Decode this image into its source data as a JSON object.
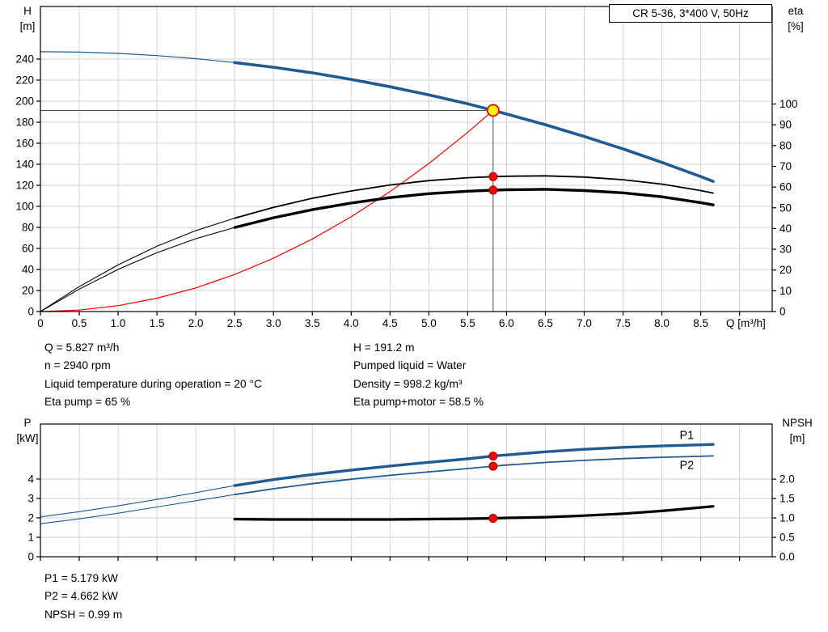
{
  "annotations": {
    "top_left": [
      "Q = 5.827 m³/h",
      "n = 2940 rpm",
      "Liquid temperature during operation = 20 °C",
      "Eta pump = 65 %"
    ],
    "top_right": [
      "H = 191.2 m",
      "Pumped liquid = Water",
      "Density = 998.2 kg/m³",
      "Eta pump+motor = 58.5 %"
    ],
    "bottom": [
      "P1 = 5.179 kW",
      "P2 = 4.662 kW",
      "NPSH = 0.99 m"
    ]
  },
  "colors": {
    "curve_blue": "#1f5a92",
    "curve_red": "#ff0000",
    "curve_black": "#000000",
    "duty_fill": "#ffff00",
    "duty_stroke": "#ff0000",
    "dot_fill": "#ff0000",
    "dot_stroke": "#990000",
    "crosshair": "#4d4d4d"
  },
  "chart_data": [
    {
      "id": "hq-chart",
      "type": "line",
      "title": "CR 5-36, 3*400 V, 50Hz",
      "x_axis": {
        "label": "Q [m³/h]",
        "lim": [
          0,
          9.42
        ],
        "ticks": [
          0,
          0.5,
          1,
          1.5,
          2,
          2.5,
          3,
          3.5,
          4,
          4.5,
          5,
          5.5,
          6,
          6.5,
          7,
          7.5,
          8,
          8.5,
          9
        ],
        "tick_labels": [
          "0",
          "0.5",
          "1.0",
          "1.5",
          "2.0",
          "2.5",
          "3.0",
          "3.5",
          "4.0",
          "4.5",
          "5.0",
          "5.5",
          "6.0",
          "6.5",
          "7.0",
          "7.5",
          "8.0",
          "8.5",
          ""
        ]
      },
      "y_left": {
        "label": "H",
        "unit": "[m]",
        "lim": [
          0,
          290
        ],
        "ticks": [
          0,
          20,
          40,
          60,
          80,
          100,
          120,
          140,
          160,
          180,
          200,
          220,
          240
        ],
        "tick_labels": [
          "0",
          "20",
          "40",
          "60",
          "80",
          "100",
          "120",
          "140",
          "160",
          "180",
          "200",
          "220",
          "240"
        ]
      },
      "y_right": {
        "label": "eta",
        "unit": "[%]",
        "lim": [
          0,
          147
        ],
        "ticks": [
          0,
          10,
          20,
          30,
          40,
          50,
          60,
          70,
          80,
          90,
          100
        ],
        "tick_labels": [
          "0",
          "10",
          "20",
          "30",
          "40",
          "50",
          "60",
          "70",
          "80",
          "90",
          "100"
        ]
      },
      "crosshair": {
        "q": 5.827,
        "v": 191.2
      },
      "series": [
        {
          "name": "system-curve",
          "axis": "left",
          "color": "#ff0000",
          "width": 1.2,
          "points": [
            [
              0,
              0
            ],
            [
              0.5,
              1.4
            ],
            [
              1,
              5.6
            ],
            [
              1.5,
              12.7
            ],
            [
              2,
              22.5
            ],
            [
              2.5,
              35.2
            ],
            [
              3,
              50.7
            ],
            [
              3.5,
              69
            ],
            [
              4,
              90.1
            ],
            [
              4.5,
              114
            ],
            [
              5,
              140.8
            ],
            [
              5.5,
              170.3
            ],
            [
              5.827,
              191.2
            ]
          ]
        },
        {
          "name": "eta-pump-lowflow",
          "axis": "right",
          "color": "#000000",
          "width": 1.1,
          "points": [
            [
              0,
              0
            ],
            [
              0.5,
              12
            ],
            [
              1,
              22.5
            ],
            [
              1.5,
              31.5
            ],
            [
              2,
              39
            ],
            [
              2.5,
              45
            ]
          ]
        },
        {
          "name": "eta-pump",
          "axis": "right",
          "color": "#000000",
          "width": 1.8,
          "points": [
            [
              2.5,
              45
            ],
            [
              3,
              50.2
            ],
            [
              3.5,
              54.6
            ],
            [
              4,
              58.1
            ],
            [
              4.5,
              61
            ],
            [
              5,
              63.1
            ],
            [
              5.5,
              64.5
            ],
            [
              5.827,
              65
            ],
            [
              6,
              65.2
            ],
            [
              6.5,
              65.4
            ],
            [
              7,
              64.8
            ],
            [
              7.5,
              63.5
            ],
            [
              8,
              61.4
            ],
            [
              8.5,
              58.3
            ],
            [
              8.66,
              57.1
            ]
          ]
        },
        {
          "name": "eta-pump-motor-lowflow",
          "axis": "right",
          "color": "#000000",
          "width": 1.1,
          "points": [
            [
              0,
              0
            ],
            [
              0.5,
              10.8
            ],
            [
              1,
              20.3
            ],
            [
              1.5,
              28.4
            ],
            [
              2,
              35.1
            ],
            [
              2.5,
              40.5
            ]
          ]
        },
        {
          "name": "eta-pump-motor",
          "axis": "right",
          "color": "#000000",
          "width": 3.4,
          "points": [
            [
              2.5,
              40.5
            ],
            [
              3,
              45.2
            ],
            [
              3.5,
              49.1
            ],
            [
              4,
              52.3
            ],
            [
              4.5,
              54.9
            ],
            [
              5,
              56.8
            ],
            [
              5.5,
              58
            ],
            [
              5.827,
              58.5
            ],
            [
              6,
              58.7
            ],
            [
              6.5,
              58.9
            ],
            [
              7,
              58.3
            ],
            [
              7.5,
              57.2
            ],
            [
              8,
              55.3
            ],
            [
              8.5,
              52.5
            ],
            [
              8.66,
              51.4
            ]
          ]
        },
        {
          "name": "head-curve-lowflow",
          "axis": "left",
          "color": "#1f5a92",
          "width": 1.2,
          "points": [
            [
              0,
              247
            ],
            [
              0.5,
              246.6
            ],
            [
              1,
              245.4
            ],
            [
              1.5,
              243.3
            ],
            [
              2,
              240.4
            ],
            [
              2.5,
              236.7
            ]
          ]
        },
        {
          "name": "head-curve",
          "axis": "left",
          "color": "#1f5a92",
          "width": 3.6,
          "points": [
            [
              2.5,
              236.7
            ],
            [
              3,
              232.2
            ],
            [
              3.5,
              226.9
            ],
            [
              4,
              220.7
            ],
            [
              4.5,
              213.7
            ],
            [
              5,
              205.9
            ],
            [
              5.5,
              197.5
            ],
            [
              5.827,
              191.2
            ],
            [
              6,
              187.8
            ],
            [
              6.5,
              177.6
            ],
            [
              7,
              166.5
            ],
            [
              7.5,
              154.6
            ],
            [
              8,
              141.8
            ],
            [
              8.5,
              128.3
            ],
            [
              8.66,
              123.7
            ]
          ]
        }
      ],
      "markers": [
        {
          "q": 5.827,
          "v": 65,
          "axis": "right",
          "style": "dot",
          "fill": "#ff0000",
          "stroke": "#990000"
        },
        {
          "q": 5.827,
          "v": 58.5,
          "axis": "right",
          "style": "dot",
          "fill": "#ff0000",
          "stroke": "#990000"
        },
        {
          "q": 5.827,
          "v": 191.2,
          "axis": "left",
          "style": "duty",
          "fill": "#ffff00",
          "stroke": "#ff0000"
        }
      ]
    },
    {
      "id": "power-npsh-chart",
      "type": "line",
      "title": "",
      "x_axis": {
        "label": "",
        "lim": [
          0,
          9.42
        ],
        "ticks": [
          0,
          0.5,
          1,
          1.5,
          2,
          2.5,
          3,
          3.5,
          4,
          4.5,
          5,
          5.5,
          6,
          6.5,
          7,
          7.5,
          8,
          8.5,
          9
        ]
      },
      "y_left": {
        "label": "P",
        "unit": "[kW]",
        "lim": [
          0,
          6.83
        ],
        "ticks": [
          0,
          1,
          2,
          3,
          4
        ],
        "tick_labels": [
          "0",
          "1",
          "2",
          "3",
          "4"
        ]
      },
      "y_right": {
        "label": "NPSH",
        "unit": "[m]",
        "lim": [
          0,
          3.42
        ],
        "ticks": [
          0,
          0.5,
          1,
          1.5,
          2
        ],
        "tick_labels": [
          "0.0",
          "0.5",
          "1.0",
          "1.5",
          "2.0"
        ]
      },
      "series": [
        {
          "name": "p1-lowflow",
          "axis": "left",
          "color": "#1f5a92",
          "width": 1.1,
          "points": [
            [
              0,
              2.05
            ],
            [
              0.5,
              2.32
            ],
            [
              1,
              2.62
            ],
            [
              1.5,
              2.95
            ],
            [
              2,
              3.3
            ],
            [
              2.5,
              3.66
            ]
          ]
        },
        {
          "name": "p1",
          "axis": "left",
          "color": "#1f5a92",
          "width": 3.4,
          "points": [
            [
              2.5,
              3.66
            ],
            [
              3,
              3.97
            ],
            [
              3.5,
              4.23
            ],
            [
              4,
              4.46
            ],
            [
              4.5,
              4.67
            ],
            [
              5,
              4.86
            ],
            [
              5.5,
              5.04
            ],
            [
              5.827,
              5.18
            ],
            [
              6,
              5.24
            ],
            [
              6.5,
              5.4
            ],
            [
              7,
              5.53
            ],
            [
              7.5,
              5.63
            ],
            [
              8,
              5.7
            ],
            [
              8.5,
              5.76
            ],
            [
              8.66,
              5.78
            ]
          ]
        },
        {
          "name": "p2-lowflow",
          "axis": "left",
          "color": "#1f5a92",
          "width": 1.1,
          "points": [
            [
              0,
              1.7
            ],
            [
              0.5,
              1.95
            ],
            [
              1,
              2.24
            ],
            [
              1.5,
              2.56
            ],
            [
              2,
              2.88
            ],
            [
              2.5,
              3.2
            ]
          ]
        },
        {
          "name": "p2",
          "axis": "left",
          "color": "#1f5a92",
          "width": 1.8,
          "points": [
            [
              2.5,
              3.2
            ],
            [
              3,
              3.5
            ],
            [
              3.5,
              3.76
            ],
            [
              4,
              3.99
            ],
            [
              4.5,
              4.19
            ],
            [
              5,
              4.37
            ],
            [
              5.5,
              4.54
            ],
            [
              5.827,
              4.66
            ],
            [
              6,
              4.72
            ],
            [
              6.5,
              4.85
            ],
            [
              7,
              4.96
            ],
            [
              7.5,
              5.05
            ],
            [
              8,
              5.12
            ],
            [
              8.5,
              5.17
            ],
            [
              8.66,
              5.19
            ]
          ]
        },
        {
          "name": "npsh",
          "axis": "right",
          "color": "#000000",
          "width": 3.2,
          "points": [
            [
              2.5,
              0.97
            ],
            [
              3,
              0.96
            ],
            [
              3.5,
              0.96
            ],
            [
              4,
              0.96
            ],
            [
              4.5,
              0.96
            ],
            [
              5,
              0.97
            ],
            [
              5.5,
              0.98
            ],
            [
              5.827,
              0.99
            ],
            [
              6,
              1.0
            ],
            [
              6.5,
              1.02
            ],
            [
              7,
              1.06
            ],
            [
              7.5,
              1.11
            ],
            [
              8,
              1.18
            ],
            [
              8.5,
              1.27
            ],
            [
              8.66,
              1.3
            ]
          ]
        }
      ],
      "markers": [
        {
          "q": 5.827,
          "v": 5.18,
          "axis": "left",
          "style": "dot",
          "fill": "#ff0000",
          "stroke": "#990000"
        },
        {
          "q": 5.827,
          "v": 4.66,
          "axis": "left",
          "style": "dot",
          "fill": "#ff0000",
          "stroke": "#990000"
        },
        {
          "q": 5.827,
          "v": 0.99,
          "axis": "right",
          "style": "dot",
          "fill": "#ff0000",
          "stroke": "#990000"
        }
      ],
      "labels": [
        {
          "text": "P1",
          "q": 8.32,
          "v": 6.05,
          "axis": "left",
          "color": "#1f5a92"
        },
        {
          "text": "P2",
          "q": 8.32,
          "v": 4.52,
          "axis": "left",
          "color": "#1f5a92"
        }
      ]
    }
  ]
}
